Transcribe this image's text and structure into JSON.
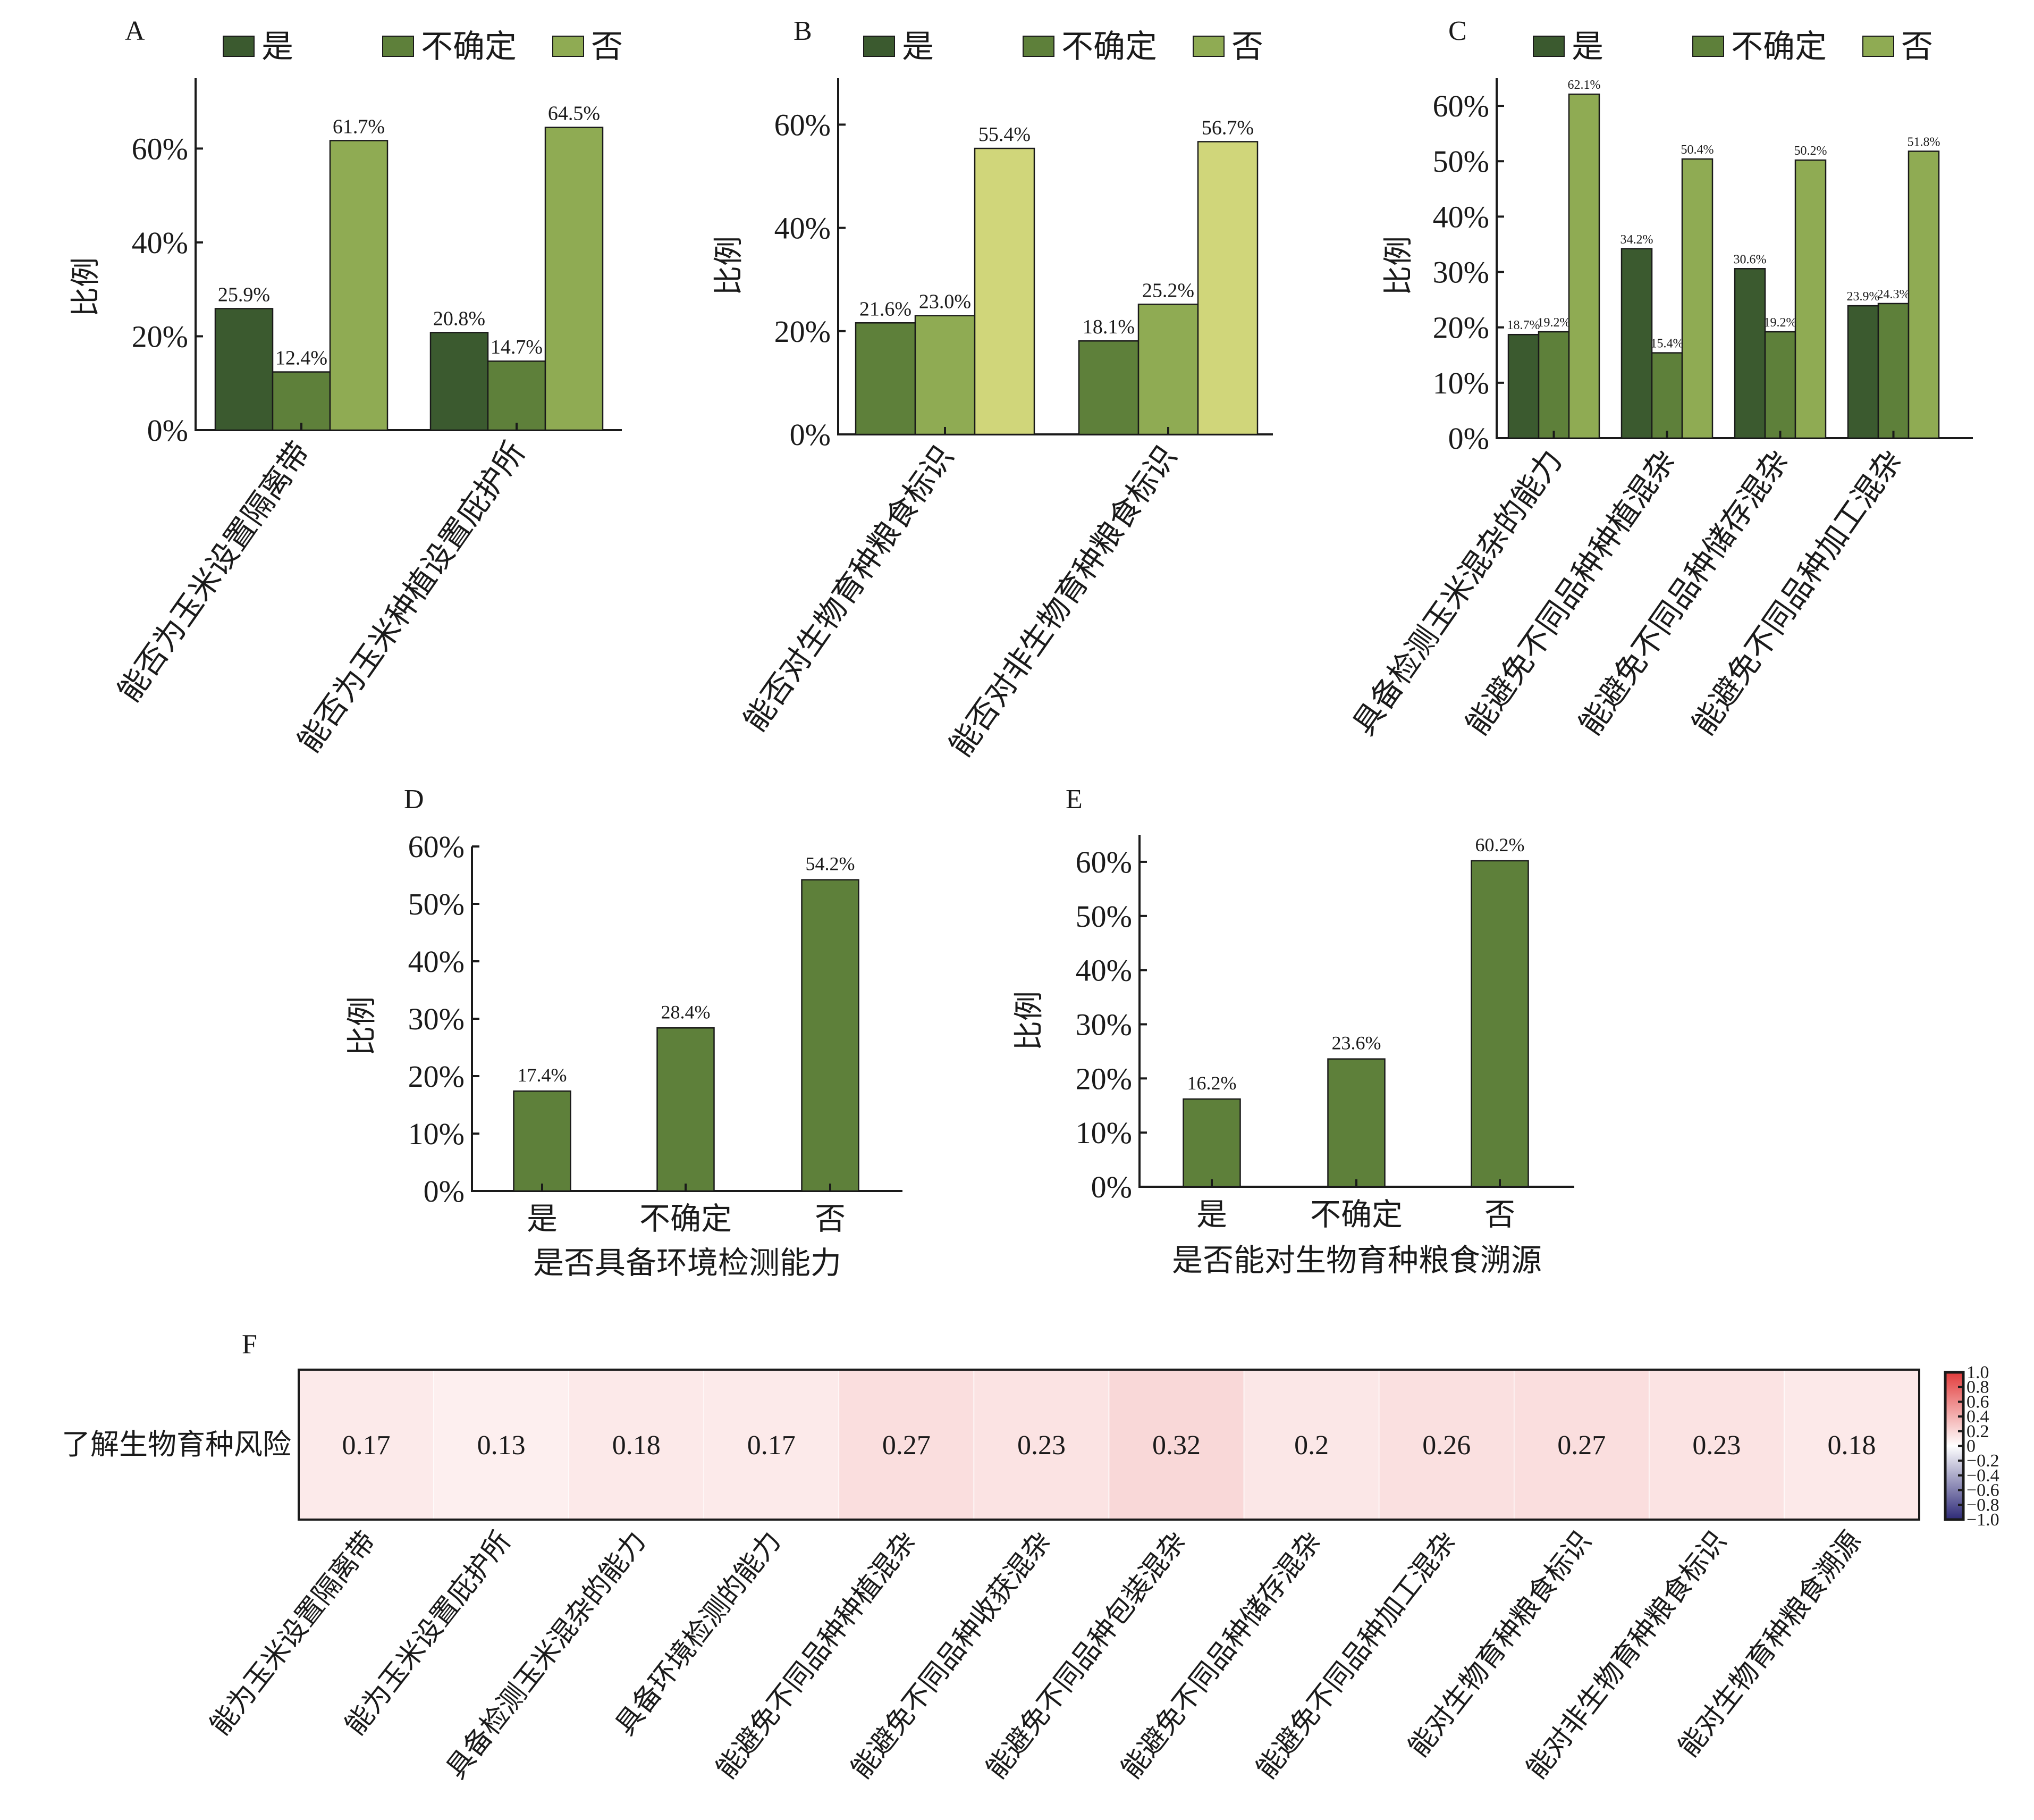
{
  "colors": {
    "dark": "#3b5a2f",
    "mid": "#5e803a",
    "light": "#8fab53",
    "yellow": "#d0d67a",
    "heat_pos": "#e23c3c",
    "heat_neg": "#2e2a78",
    "heat_zero": "#ffffff"
  },
  "legend": [
    "是",
    "不确定",
    "否"
  ],
  "chart_data": [
    {
      "panel": "A",
      "type": "bar",
      "ylabel": "比例",
      "ylim": [
        0,
        75
      ],
      "yticks": [
        0,
        20,
        40,
        60
      ],
      "ytick_labels": [
        "0%",
        "20%",
        "40%",
        "60%"
      ],
      "categories": [
        "能否为玉米设置隔离带",
        "能否为玉米种植设置庇护所"
      ],
      "legend_colors": [
        "dark",
        "mid",
        "light"
      ],
      "bar_colors": [
        "dark",
        "mid",
        "light"
      ],
      "series": [
        {
          "name": "是",
          "values": [
            25.9,
            20.8
          ],
          "labels": [
            "25.9%",
            "20.8%"
          ]
        },
        {
          "name": "不确定",
          "values": [
            12.4,
            14.7
          ],
          "labels": [
            "12.4%",
            "14.7%"
          ]
        },
        {
          "name": "否",
          "values": [
            61.7,
            64.5
          ],
          "labels": [
            "61.7%",
            "64.5%"
          ]
        }
      ]
    },
    {
      "panel": "B",
      "type": "bar",
      "ylabel": "比例",
      "ylim": [
        0,
        69
      ],
      "yticks": [
        0,
        20,
        40,
        60
      ],
      "ytick_labels": [
        "0%",
        "20%",
        "40%",
        "60%"
      ],
      "categories": [
        "能否对生物育种粮食标识",
        "能否对非生物育种粮食标识"
      ],
      "legend_colors": [
        "dark",
        "mid",
        "light"
      ],
      "bar_colors": [
        "mid",
        "light",
        "yellow"
      ],
      "series": [
        {
          "name": "是",
          "values": [
            21.6,
            18.1
          ],
          "labels": [
            "21.6%",
            "18.1%"
          ]
        },
        {
          "name": "不确定",
          "values": [
            23.0,
            25.2
          ],
          "labels": [
            "23.0%",
            "25.2%"
          ]
        },
        {
          "name": "否",
          "values": [
            55.4,
            56.7
          ],
          "labels": [
            "55.4%",
            "56.7%"
          ]
        }
      ]
    },
    {
      "panel": "C",
      "type": "bar",
      "ylabel": "比例",
      "ylim": [
        0,
        65
      ],
      "yticks": [
        0,
        10,
        20,
        30,
        40,
        50,
        60
      ],
      "ytick_labels": [
        "0%",
        "10%",
        "20%",
        "30%",
        "40%",
        "50%",
        "60%"
      ],
      "categories": [
        "具备检测玉米混杂的能力",
        "能避免不同品种种植混杂",
        "能避免不同品种储存混杂",
        "能避免不同品种加工混杂"
      ],
      "legend_colors": [
        "dark",
        "mid",
        "light"
      ],
      "bar_colors": [
        "dark",
        "mid",
        "light"
      ],
      "series": [
        {
          "name": "是",
          "values": [
            18.7,
            34.2,
            30.6,
            23.9
          ],
          "labels": [
            "18.7%",
            "34.2%",
            "30.6%",
            "23.9%"
          ]
        },
        {
          "name": "不确定",
          "values": [
            19.2,
            15.4,
            19.2,
            24.3
          ],
          "labels": [
            "19.2%",
            "15.4%",
            "19.2%",
            "24.3%"
          ]
        },
        {
          "name": "否",
          "values": [
            62.1,
            50.4,
            50.2,
            51.8
          ],
          "labels": [
            "62.1%",
            "50.4%",
            "50.2%",
            "51.8%"
          ]
        }
      ]
    },
    {
      "panel": "D",
      "type": "bar",
      "ylabel": "比例",
      "xlabel": "是否具备环境检测能力",
      "ylim": [
        0,
        60
      ],
      "yticks": [
        0,
        10,
        20,
        30,
        40,
        50,
        60
      ],
      "ytick_labels": [
        "0%",
        "10%",
        "20%",
        "30%",
        "40%",
        "50%",
        "60%"
      ],
      "categories": [
        "是",
        "不确定",
        "否"
      ],
      "values": [
        17.4,
        28.4,
        54.2
      ],
      "labels": [
        "17.4%",
        "28.4%",
        "54.2%"
      ],
      "bar_color": "mid"
    },
    {
      "panel": "E",
      "type": "bar",
      "ylabel": "比例",
      "xlabel": "是否能对生物育种粮食溯源",
      "ylim": [
        0,
        65
      ],
      "yticks": [
        0,
        10,
        20,
        30,
        40,
        50,
        60
      ],
      "ytick_labels": [
        "0%",
        "10%",
        "20%",
        "30%",
        "40%",
        "50%",
        "60%"
      ],
      "categories": [
        "是",
        "不确定",
        "否"
      ],
      "values": [
        16.2,
        23.6,
        60.2
      ],
      "labels": [
        "16.2%",
        "23.6%",
        "60.2%"
      ],
      "bar_color": "mid"
    },
    {
      "panel": "F",
      "type": "heatmap",
      "row_labels": [
        "了解生物育种风险"
      ],
      "col_labels": [
        "能为玉米设置隔离带",
        "能为玉米设置庇护所",
        "具备检测玉米混杂的能力",
        "具备环境检测的能力",
        "能避免不同品种种植混杂",
        "能避免不同品种收获混杂",
        "能避免不同品种包装混杂",
        "能避免不同品种储存混杂",
        "能避免不同品种加工混杂",
        "能对生物育种粮食标识",
        "能对非生物育种粮食标识",
        "能对生物育种粮食溯源"
      ],
      "values": [
        [
          0.17,
          0.13,
          0.18,
          0.17,
          0.27,
          0.23,
          0.32,
          0.2,
          0.26,
          0.27,
          0.23,
          0.18
        ]
      ],
      "value_labels": [
        [
          "0.17",
          "0.13",
          "0.18",
          "0.17",
          "0.27",
          "0.23",
          "0.32",
          "0.2",
          "0.26",
          "0.27",
          "0.23",
          "0.18"
        ]
      ],
      "colorbar": {
        "range": [
          -1.0,
          1.0
        ],
        "ticks": [
          1.0,
          0.8,
          0.6,
          0.4,
          0.2,
          0,
          -0.2,
          -0.4,
          -0.6,
          -0.8,
          -1.0
        ],
        "tick_labels": [
          "1.0",
          "0.8",
          "0.6",
          "0.4",
          "0.2",
          "0",
          "−0.2",
          "−0.4",
          "−0.6",
          "−0.8",
          "−1.0"
        ]
      }
    }
  ]
}
